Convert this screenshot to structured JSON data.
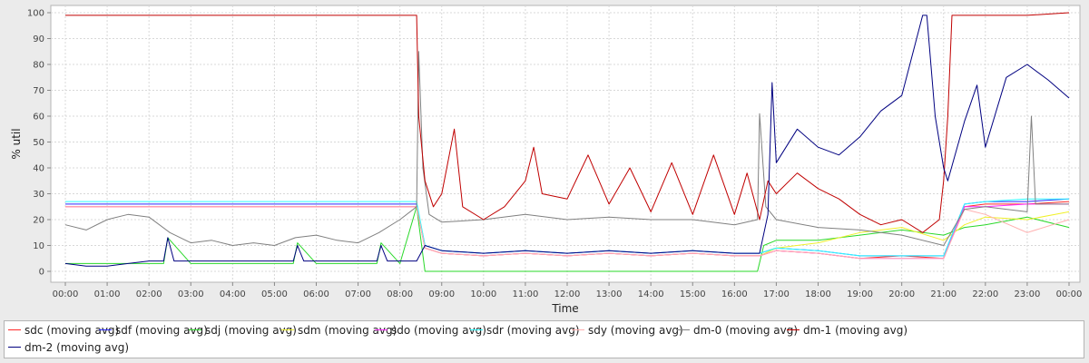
{
  "chart_data": {
    "type": "line",
    "title": "",
    "xlabel": "Time",
    "ylabel": "% util",
    "ylim": [
      0,
      100
    ],
    "yticks": [
      0,
      10,
      20,
      30,
      40,
      50,
      60,
      70,
      80,
      90,
      100
    ],
    "xticks": [
      "00:00",
      "01:00",
      "02:00",
      "03:00",
      "04:00",
      "05:00",
      "06:00",
      "07:00",
      "08:00",
      "09:00",
      "10:00",
      "11:00",
      "12:00",
      "13:00",
      "14:00",
      "15:00",
      "16:00",
      "17:00",
      "18:00",
      "19:00",
      "20:00",
      "21:00",
      "22:00",
      "23:00",
      "00:00"
    ],
    "x_unit": "hour of day",
    "grid": true,
    "legend_position": "bottom",
    "series": [
      {
        "name": "sdc (moving avg)",
        "color": "#ff2a2a",
        "x": [
          0,
          1,
          2,
          3,
          4,
          5,
          6,
          7,
          8,
          8.4,
          8.6,
          9,
          10,
          11,
          12,
          13,
          14,
          15,
          16,
          16.6,
          17,
          18,
          19,
          20,
          21,
          21.5,
          22,
          23,
          24
        ],
        "y": [
          25,
          25,
          25,
          25,
          25,
          25,
          25,
          25,
          25,
          25,
          9,
          7,
          6,
          7,
          6,
          7,
          6,
          7,
          6,
          6,
          8,
          7,
          5,
          6,
          5,
          25,
          26,
          26,
          27
        ]
      },
      {
        "name": "sdf (moving avg)",
        "color": "#2a2aff",
        "x": [
          0,
          1,
          2,
          3,
          4,
          5,
          6,
          7,
          8,
          8.4,
          8.6,
          9,
          10,
          11,
          12,
          13,
          14,
          15,
          16,
          16.6,
          17,
          18,
          19,
          20,
          21,
          21.5,
          22,
          23,
          24
        ],
        "y": [
          26,
          26,
          26,
          26,
          26,
          26,
          26,
          26,
          26,
          26,
          10,
          8,
          7,
          8,
          7,
          8,
          7,
          8,
          7,
          7,
          9,
          8,
          6,
          6,
          6,
          26,
          27,
          27,
          28
        ]
      },
      {
        "name": "sdj (moving avg)",
        "color": "#2ad82a",
        "x": [
          0,
          1,
          2,
          2.35,
          2.45,
          3,
          4,
          5,
          5.45,
          5.55,
          6,
          7,
          7.45,
          7.55,
          8,
          8.4,
          8.6,
          9,
          10,
          11,
          12,
          13,
          14,
          15,
          16,
          16.55,
          16.7,
          17,
          18,
          19,
          20,
          21,
          21.5,
          22,
          23,
          24
        ],
        "y": [
          3,
          3,
          3,
          3,
          13,
          3,
          3,
          3,
          3,
          11,
          3,
          3,
          3,
          11,
          3,
          25,
          0,
          0,
          0,
          0,
          0,
          0,
          0,
          0,
          0,
          0,
          10,
          12,
          12,
          14,
          16,
          14,
          17,
          18,
          21,
          17
        ]
      },
      {
        "name": "sdm (moving avg)",
        "color": "#f0f02a",
        "x": [
          0,
          1,
          2,
          3,
          4,
          5,
          6,
          7,
          8,
          8.4,
          8.6,
          9,
          10,
          11,
          12,
          13,
          14,
          15,
          16,
          16.6,
          17,
          18,
          19,
          20,
          21,
          21.5,
          22,
          23,
          24
        ],
        "y": [
          25,
          25,
          25,
          25,
          25,
          25,
          25,
          25,
          25,
          25,
          9,
          7,
          6,
          7,
          6,
          7,
          6,
          7,
          6,
          6,
          9,
          11,
          15,
          17,
          12,
          18,
          21,
          20,
          23
        ]
      },
      {
        "name": "sdo (moving avg)",
        "color": "#ff2aff",
        "x": [
          0,
          1,
          2,
          3,
          4,
          5,
          6,
          7,
          8,
          8.4,
          8.6,
          9,
          10,
          11,
          12,
          13,
          14,
          15,
          16,
          16.6,
          17,
          18,
          19,
          20,
          21,
          21.5,
          22,
          23,
          24
        ],
        "y": [
          25,
          25,
          25,
          25,
          25,
          25,
          25,
          25,
          25,
          25,
          9,
          7,
          6,
          7,
          6,
          7,
          6,
          7,
          6,
          6,
          8,
          7,
          5,
          5,
          5,
          25,
          25,
          26,
          26
        ]
      },
      {
        "name": "sdr (moving avg)",
        "color": "#2affff",
        "x": [
          0,
          1,
          2,
          3,
          4,
          5,
          6,
          7,
          8,
          8.4,
          8.6,
          9,
          10,
          11,
          12,
          13,
          14,
          15,
          16,
          16.6,
          17,
          18,
          19,
          20,
          21,
          21.5,
          22,
          23,
          24
        ],
        "y": [
          27,
          27,
          27,
          27,
          27,
          27,
          27,
          27,
          27,
          27,
          10,
          8,
          7,
          8,
          7,
          8,
          7,
          8,
          7,
          7,
          9,
          8,
          6,
          6,
          6,
          26,
          27,
          28,
          28
        ]
      },
      {
        "name": "sdy (moving avg)",
        "color": "#ffafaf",
        "x": [
          0,
          1,
          2,
          3,
          4,
          5,
          6,
          7,
          8,
          8.4,
          8.6,
          9,
          10,
          11,
          12,
          13,
          14,
          15,
          16,
          16.6,
          17,
          18,
          19,
          20,
          21,
          21.5,
          22,
          23,
          24
        ],
        "y": [
          25,
          25,
          25,
          25,
          25,
          25,
          25,
          25,
          25,
          25,
          9,
          7,
          6,
          7,
          6,
          7,
          6,
          7,
          6,
          6,
          8,
          7,
          5,
          5,
          5,
          24,
          22,
          15,
          20
        ]
      },
      {
        "name": "dm-0 (moving avg)",
        "color": "#808080",
        "x": [
          0,
          0.5,
          1,
          1.5,
          2,
          2.5,
          3,
          3.5,
          4,
          4.5,
          5,
          5.5,
          6,
          6.5,
          7,
          7.5,
          8,
          8.4,
          8.45,
          8.55,
          8.7,
          9,
          10,
          11,
          12,
          13,
          14,
          15,
          16,
          16.55,
          16.6,
          16.75,
          17,
          18,
          19,
          20,
          21,
          21.5,
          22,
          22.5,
          23,
          23.1,
          23.2,
          24
        ],
        "y": [
          18,
          16,
          20,
          22,
          21,
          15,
          11,
          12,
          10,
          11,
          10,
          13,
          14,
          12,
          11,
          15,
          20,
          25,
          85,
          40,
          22,
          19,
          20,
          22,
          20,
          21,
          20,
          20,
          18,
          20,
          61,
          25,
          20,
          17,
          16,
          14,
          10,
          24,
          25,
          24,
          23,
          60,
          26,
          26
        ]
      },
      {
        "name": "dm-1 (moving avg)",
        "color": "#c00000",
        "x": [
          0,
          1,
          2,
          3,
          4,
          5,
          6,
          7,
          8,
          8.4,
          8.45,
          8.6,
          8.8,
          9,
          9.3,
          9.5,
          10,
          10.5,
          11,
          11.2,
          11.4,
          12,
          12.5,
          13,
          13.5,
          14,
          14.5,
          15,
          15.5,
          16,
          16.3,
          16.6,
          16.8,
          17,
          17.5,
          18,
          18.5,
          19,
          19.5,
          20,
          20.5,
          20.9,
          21,
          21.1,
          21.2,
          22,
          23,
          24
        ],
        "y": [
          99,
          99,
          99,
          99,
          99,
          99,
          99,
          99,
          99,
          99,
          60,
          35,
          25,
          30,
          55,
          25,
          20,
          25,
          35,
          48,
          30,
          28,
          45,
          26,
          40,
          23,
          42,
          22,
          45,
          22,
          38,
          20,
          35,
          30,
          38,
          32,
          28,
          22,
          18,
          20,
          15,
          20,
          35,
          60,
          99,
          99,
          99,
          100
        ]
      },
      {
        "name": "dm-2 (moving avg)",
        "color": "#000080",
        "x": [
          0,
          0.5,
          1,
          1.5,
          2,
          2.35,
          2.45,
          2.6,
          3,
          4,
          5,
          5.45,
          5.55,
          5.7,
          6,
          7,
          7.45,
          7.55,
          7.7,
          8,
          8.4,
          8.6,
          9,
          10,
          11,
          12,
          13,
          14,
          15,
          16,
          16.6,
          16.8,
          16.9,
          17,
          17.5,
          18,
          18.5,
          19,
          19.5,
          20,
          20.5,
          20.6,
          20.8,
          21,
          21.1,
          21.5,
          21.8,
          22,
          22.5,
          23,
          23.5,
          24
        ],
        "y": [
          3,
          2,
          2,
          3,
          4,
          4,
          13,
          4,
          4,
          4,
          4,
          4,
          10,
          4,
          4,
          4,
          4,
          10,
          4,
          4,
          4,
          10,
          8,
          7,
          8,
          7,
          8,
          7,
          8,
          7,
          7,
          22,
          73,
          42,
          55,
          48,
          45,
          52,
          62,
          68,
          99,
          99,
          60,
          40,
          35,
          58,
          72,
          48,
          75,
          80,
          74,
          67
        ]
      }
    ]
  }
}
